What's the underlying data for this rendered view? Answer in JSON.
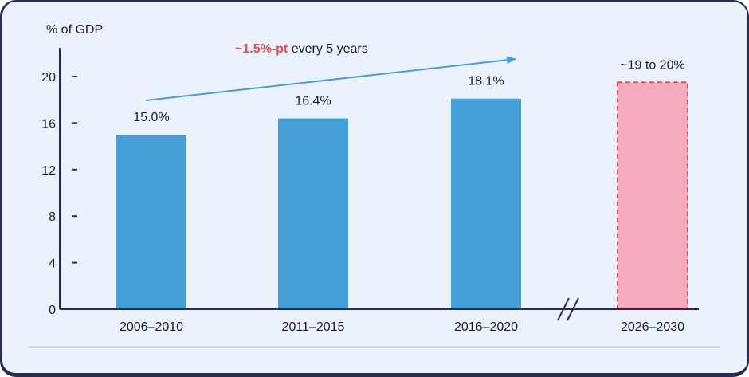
{
  "chart_data": {
    "type": "bar",
    "ylabel": "% of GDP",
    "ylim": [
      0,
      22
    ],
    "yticks": [
      0,
      4,
      8,
      12,
      16,
      20
    ],
    "categories": [
      "2006–2010",
      "2011–2015",
      "2016–2020",
      "2026–2030"
    ],
    "values": [
      15.0,
      16.4,
      18.1,
      19.5
    ],
    "data_labels": [
      "15.0%",
      "16.4%",
      "18.1%",
      "~19 to 20%"
    ],
    "projected": [
      false,
      false,
      false,
      true
    ],
    "axis_break_before_last": true,
    "annotation": {
      "highlight": "~1.5%-pt",
      "text": " every 5 years"
    },
    "colors": {
      "bar": "#439fd5",
      "projected_fill": "#f5abbe",
      "projected_border": "#e84a55",
      "highlight": "#e84a55",
      "trend_arrow": "#439fd5",
      "axis": "#2a2b55"
    }
  }
}
